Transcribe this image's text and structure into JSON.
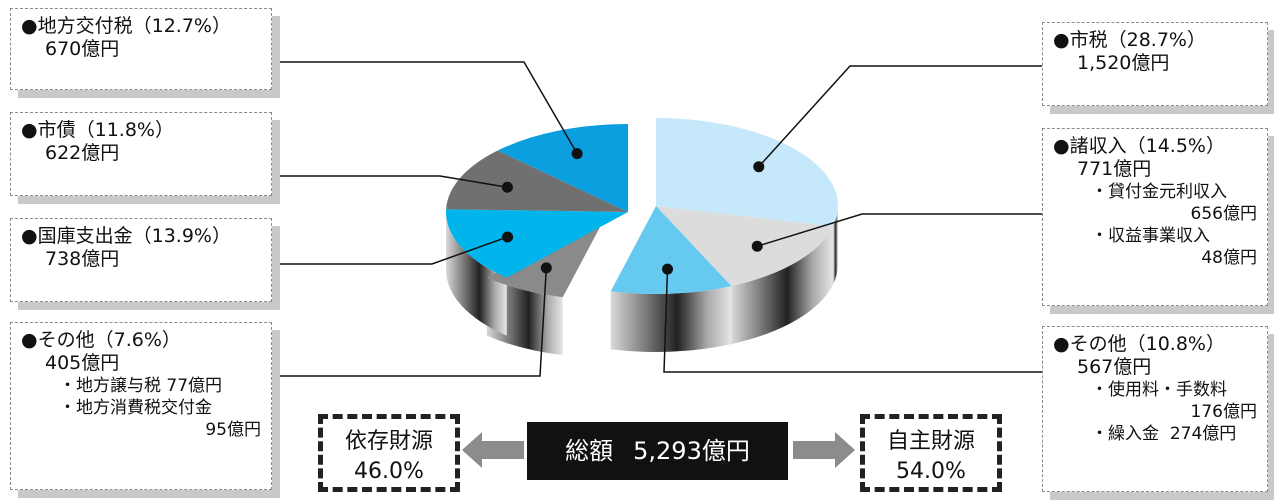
{
  "chart_data": {
    "type": "pie",
    "title": "",
    "total": {
      "label": "総額",
      "value": "5,293億円"
    },
    "slices": [
      {
        "name": "市税",
        "percent": 28.7,
        "amount": "1,520億円",
        "percent_label": "（28.7%）",
        "color": "#c5e9fa"
      },
      {
        "name": "諸収入",
        "percent": 14.5,
        "amount": "771億円",
        "percent_label": "（14.5%）",
        "color": "#dcdcdc",
        "details": [
          {
            "name": "・貸付金元利収入",
            "amount": "656億円"
          },
          {
            "name": "・収益事業収入",
            "amount": "48億円"
          }
        ]
      },
      {
        "name": "その他",
        "percent": 10.8,
        "amount": "567億円",
        "percent_label": "（10.8%）",
        "color": "#66c9f0",
        "details": [
          {
            "name": "・使用料・手数料",
            "amount": "176億円"
          },
          {
            "name": "・繰入金",
            "amount": "274億円"
          }
        ]
      },
      {
        "name": "その他",
        "percent": 7.6,
        "amount": "405億円",
        "percent_label": "（7.6%）",
        "color": "#8a8a8a",
        "details": [
          {
            "name": "・地方譲与税",
            "amount": "77億円"
          },
          {
            "name": "・地方消費税交付金",
            "amount": "95億円"
          }
        ]
      },
      {
        "name": "国庫支出金",
        "percent": 13.9,
        "amount": "738億円",
        "percent_label": "（13.9%）",
        "color": "#00b4ec"
      },
      {
        "name": "市債",
        "percent": 11.8,
        "amount": "622億円",
        "percent_label": "（11.8%）",
        "color": "#707070"
      },
      {
        "name": "地方交付税",
        "percent": 12.7,
        "amount": "670億円",
        "percent_label": "（12.7%）",
        "color": "#0b9fdf"
      }
    ],
    "groups": [
      {
        "label": "依存財源",
        "value": "46.0%"
      },
      {
        "label": "自主財源",
        "value": "54.0%"
      }
    ]
  }
}
